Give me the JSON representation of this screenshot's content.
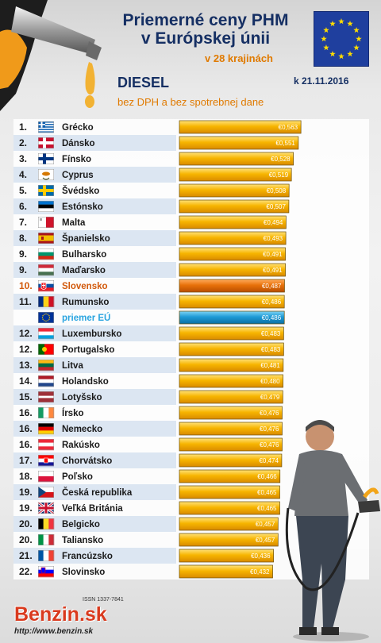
{
  "header": {
    "title_line1": "Priemerné ceny PHM",
    "title_line2": "v Európskej únii",
    "subtitle": "v 28 krajinách",
    "fuel": "DIESEL",
    "date": "k 21.11.2016",
    "note": "bez DPH a bez spotrebnej dane"
  },
  "footer": {
    "issn": "ISSN 1337-7841",
    "logo": "Benzin.sk",
    "url": "http://www.benzin.sk"
  },
  "colors": {
    "bar": "#f7b500",
    "bar_highlight": "#e8710a",
    "bar_average": "#1e9bd6",
    "rank_text": "#1a1a1a",
    "highlight_text": "#d2590b",
    "average_text": "#2aa5e0",
    "row_alt": "#dce6f2"
  },
  "chart_data": {
    "type": "bar",
    "orientation": "horizontal",
    "currency": "€",
    "unit": "EUR/l",
    "xlim": [
      0,
      0.6
    ],
    "rows": [
      {
        "rank": "1.",
        "country": "Grécko",
        "value": 0.563,
        "label": "€0,563",
        "flag": "greece"
      },
      {
        "rank": "2.",
        "country": "Dánsko",
        "value": 0.551,
        "label": "€0,551",
        "flag": "denmark"
      },
      {
        "rank": "3.",
        "country": "Fínsko",
        "value": 0.528,
        "label": "€0,528",
        "flag": "finland"
      },
      {
        "rank": "4.",
        "country": "Cyprus",
        "value": 0.519,
        "label": "€0,519",
        "flag": "cyprus"
      },
      {
        "rank": "5.",
        "country": "Švédsko",
        "value": 0.508,
        "label": "€0,508",
        "flag": "sweden"
      },
      {
        "rank": "6.",
        "country": "Estónsko",
        "value": 0.507,
        "label": "€0,507",
        "flag": "estonia"
      },
      {
        "rank": "7.",
        "country": "Malta",
        "value": 0.494,
        "label": "€0,494",
        "flag": "malta"
      },
      {
        "rank": "8.",
        "country": "Španielsko",
        "value": 0.493,
        "label": "€0,493",
        "flag": "spain"
      },
      {
        "rank": "9.",
        "country": "Bulharsko",
        "value": 0.491,
        "label": "€0,491",
        "flag": "bulgaria"
      },
      {
        "rank": "9.",
        "country": "Maďarsko",
        "value": 0.491,
        "label": "€0,491",
        "flag": "hungary"
      },
      {
        "rank": "10.",
        "country": "Slovensko",
        "value": 0.487,
        "label": "€0,487",
        "flag": "slovakia",
        "highlight": true
      },
      {
        "rank": "11.",
        "country": "Rumunsko",
        "value": 0.486,
        "label": "€0,486",
        "flag": "romania"
      },
      {
        "rank": "",
        "country": "priemer EÚ",
        "value": 0.486,
        "label": "€0,486",
        "flag": "eu",
        "average": true
      },
      {
        "rank": "12.",
        "country": "Luxembursko",
        "value": 0.483,
        "label": "€0,483",
        "flag": "luxembourg"
      },
      {
        "rank": "12.",
        "country": "Portugalsko",
        "value": 0.483,
        "label": "€0,483",
        "flag": "portugal"
      },
      {
        "rank": "13.",
        "country": "Litva",
        "value": 0.481,
        "label": "€0,481",
        "flag": "lithuania"
      },
      {
        "rank": "14.",
        "country": "Holandsko",
        "value": 0.48,
        "label": "€0,480",
        "flag": "netherlands"
      },
      {
        "rank": "15.",
        "country": "Lotyšsko",
        "value": 0.479,
        "label": "€0,479",
        "flag": "latvia"
      },
      {
        "rank": "16.",
        "country": "Írsko",
        "value": 0.476,
        "label": "€0,476",
        "flag": "ireland"
      },
      {
        "rank": "16.",
        "country": "Nemecko",
        "value": 0.476,
        "label": "€0,476",
        "flag": "germany"
      },
      {
        "rank": "16.",
        "country": "Rakúsko",
        "value": 0.476,
        "label": "€0,476",
        "flag": "austria"
      },
      {
        "rank": "17.",
        "country": "Chorvátsko",
        "value": 0.474,
        "label": "€0,474",
        "flag": "croatia"
      },
      {
        "rank": "18.",
        "country": "Poľsko",
        "value": 0.466,
        "label": "€0,466",
        "flag": "poland"
      },
      {
        "rank": "19.",
        "country": "Česká republika",
        "value": 0.465,
        "label": "€0,465",
        "flag": "czech"
      },
      {
        "rank": "19.",
        "country": "Veľká Británia",
        "value": 0.465,
        "label": "€0,465",
        "flag": "uk"
      },
      {
        "rank": "20.",
        "country": "Belgicko",
        "value": 0.457,
        "label": "€0,457",
        "flag": "belgium"
      },
      {
        "rank": "20.",
        "country": "Taliansko",
        "value": 0.457,
        "label": "€0,457",
        "flag": "italy"
      },
      {
        "rank": "21.",
        "country": "Francúzsko",
        "value": 0.436,
        "label": "€0,436",
        "flag": "france"
      },
      {
        "rank": "22.",
        "country": "Slovinsko",
        "value": 0.432,
        "label": "€0,432",
        "flag": "slovenia"
      }
    ]
  }
}
